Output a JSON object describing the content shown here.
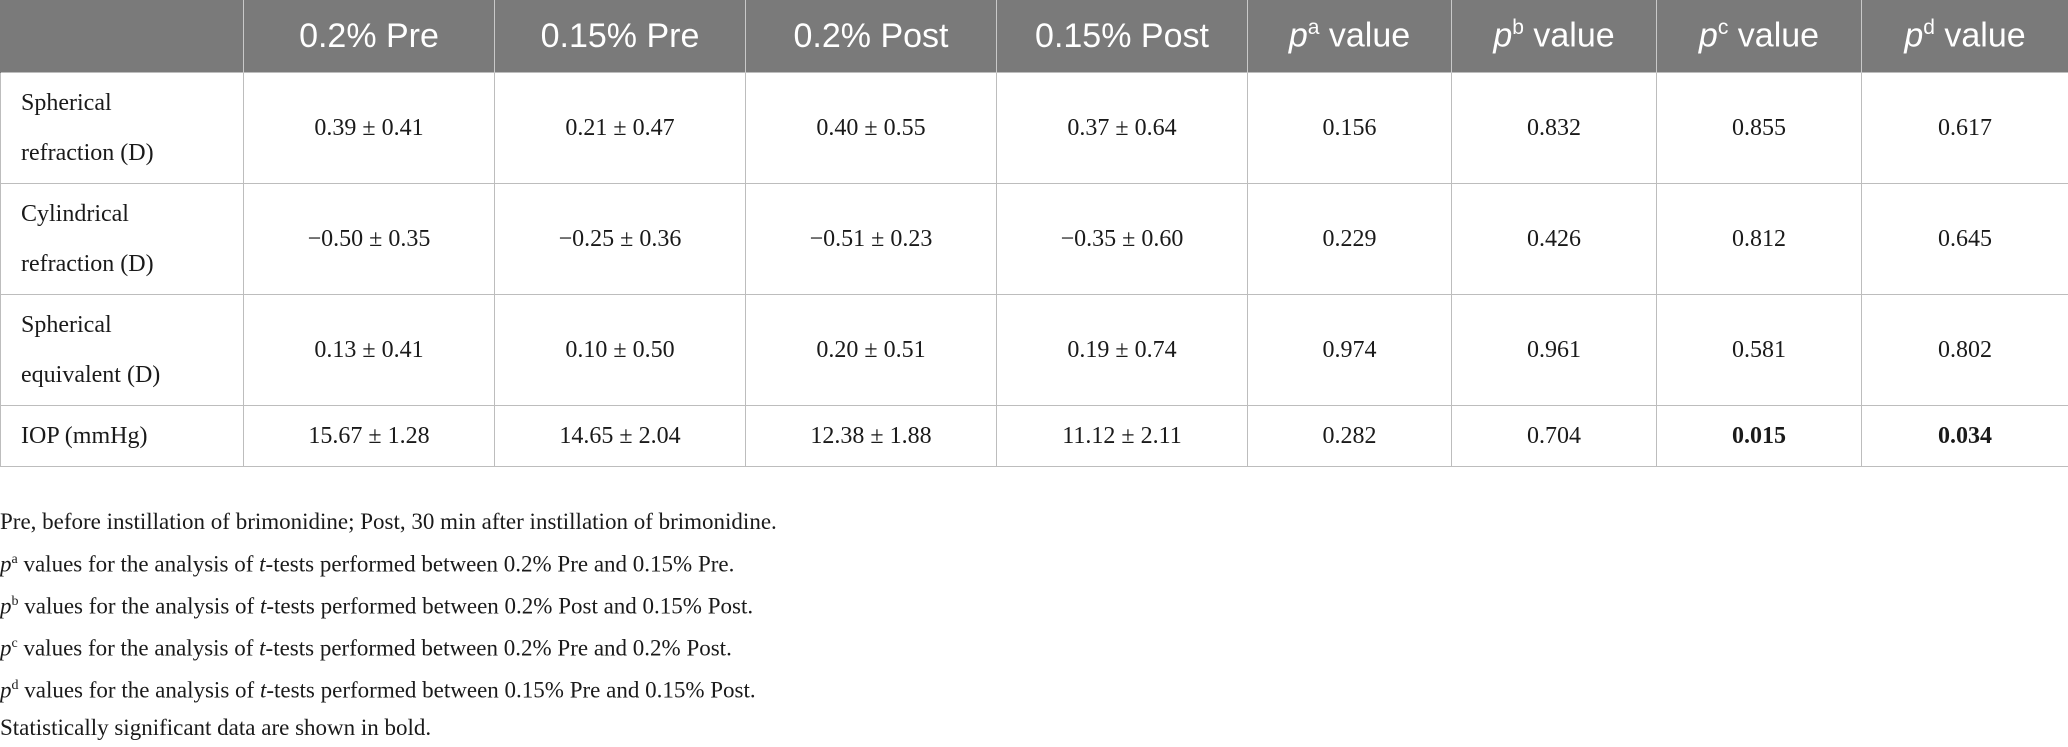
{
  "table": {
    "headers": [
      {
        "text": "",
        "sup": ""
      },
      {
        "text": "0.2% Pre",
        "sup": ""
      },
      {
        "text": "0.15% Pre",
        "sup": ""
      },
      {
        "text": "0.2% Post",
        "sup": ""
      },
      {
        "text": "0.15% Post",
        "sup": ""
      },
      {
        "p": "p",
        "sup": "a",
        "text": " value"
      },
      {
        "p": "p",
        "sup": "b",
        "text": " value"
      },
      {
        "p": "p",
        "sup": "c",
        "text": " value"
      },
      {
        "p": "p",
        "sup": "d",
        "text": " value"
      }
    ],
    "rows": [
      {
        "label_line1": "Spherical",
        "label_line2": "refraction (D)",
        "cells": [
          "0.39 ± 0.41",
          "0.21 ± 0.47",
          "0.40 ± 0.55",
          "0.37 ± 0.64",
          "0.156",
          "0.832",
          "0.855",
          "0.617"
        ]
      },
      {
        "label_line1": "Cylindrical",
        "label_line2": "refraction (D)",
        "cells": [
          "−0.50 ± 0.35",
          "−0.25 ± 0.36",
          "−0.51 ± 0.23",
          "−0.35 ± 0.60",
          "0.229",
          "0.426",
          "0.812",
          "0.645"
        ]
      },
      {
        "label_line1": "Spherical",
        "label_line2": "equivalent (D)",
        "cells": [
          "0.13 ± 0.41",
          "0.10 ± 0.50",
          "0.20 ± 0.51",
          "0.19 ± 0.74",
          "0.974",
          "0.961",
          "0.581",
          "0.802"
        ]
      },
      {
        "label_line1": "IOP (mmHg)",
        "cells": [
          "15.67 ± 1.28",
          "14.65 ± 2.04",
          "12.38 ± 1.88",
          "11.12 ± 2.11",
          "0.282",
          "0.704",
          "0.015",
          "0.034"
        ]
      }
    ]
  },
  "notes": {
    "line1": "Pre, before instillation of brimonidine; Post, 30 min after instillation of brimonidine.",
    "line2": {
      "p": "p",
      "sup": "a",
      "pre": " values for the analysis of ",
      "t": "t",
      "post": "-tests performed between 0.2% Pre and 0.15% Pre."
    },
    "line3": {
      "p": "p",
      "sup": "b",
      "pre": " values for the analysis of ",
      "t": "t",
      "post": "-tests performed between 0.2% Post and 0.15% Post."
    },
    "line4": {
      "p": "p",
      "sup": "c",
      "pre": " values for the analysis of ",
      "t": "t",
      "post": "-tests performed between 0.2% Pre and 0.2% Post."
    },
    "line5": {
      "p": "p",
      "sup": "d",
      "pre": " values for the analysis of ",
      "t": "t",
      "post": "-tests performed between 0.15% Pre and 0.15% Post."
    },
    "line6": "Statistically significant data are shown in bold."
  }
}
